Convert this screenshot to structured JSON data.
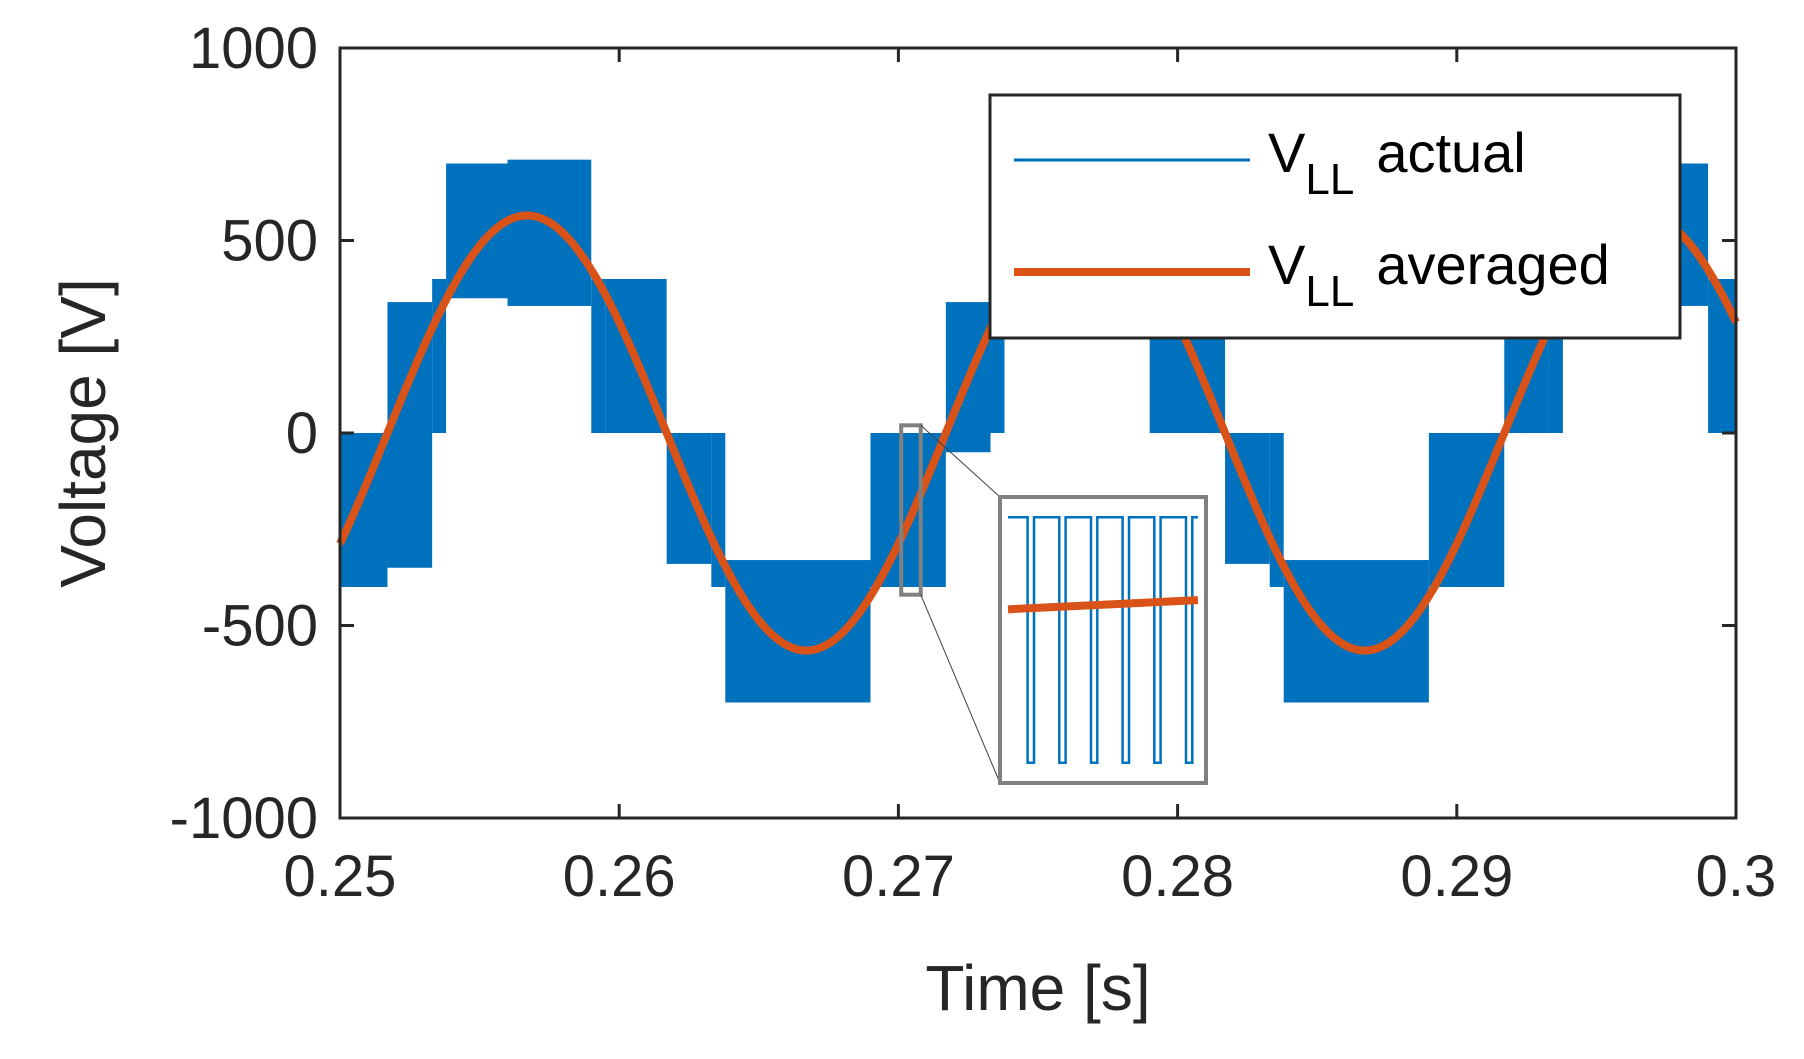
{
  "chart_data": {
    "type": "line",
    "xlabel": "Time [s]",
    "ylabel": "Voltage [V]",
    "xlim": [
      0.25,
      0.3
    ],
    "ylim": [
      -1000,
      1000
    ],
    "x_ticks": [
      0.25,
      0.26,
      0.27,
      0.28,
      0.29,
      0.3
    ],
    "x_tick_labels": [
      "0.25",
      "0.26",
      "0.27",
      "0.28",
      "0.29",
      "0.3"
    ],
    "y_ticks": [
      1000,
      500,
      0,
      -500,
      -1000
    ],
    "y_tick_labels": [
      "1000",
      "500",
      "0",
      "-500",
      "-1000"
    ],
    "grid": false,
    "legend_position": "top-right",
    "series": [
      {
        "name": "V_LL actual",
        "legend_main": "V",
        "legend_sub": "LL",
        "legend_rest": "actual",
        "color": "#0072BD",
        "kind": "pwm-envelope",
        "description_fundamental_hz": 50,
        "envelope_segments": [
          {
            "x_start": 0.25,
            "x_end": 0.2517,
            "upper": 0,
            "lower": -400
          },
          {
            "x_start": 0.2517,
            "x_end": 0.2533,
            "upper": 340,
            "lower": -350
          },
          {
            "x_start": 0.2533,
            "x_end": 0.2538,
            "upper": 400,
            "lower": 0
          },
          {
            "x_start": 0.2538,
            "x_end": 0.256,
            "upper": 700,
            "lower": 350
          },
          {
            "x_start": 0.256,
            "x_end": 0.259,
            "upper": 710,
            "lower": 330
          },
          {
            "x_start": 0.259,
            "x_end": 0.2595,
            "upper": 400,
            "lower": 0
          },
          {
            "x_start": 0.2595,
            "x_end": 0.2617,
            "upper": 400,
            "lower": 0
          },
          {
            "x_start": 0.2617,
            "x_end": 0.2633,
            "upper": 0,
            "lower": -340
          },
          {
            "x_start": 0.2633,
            "x_end": 0.2638,
            "upper": 0,
            "lower": -400
          },
          {
            "x_start": 0.2638,
            "x_end": 0.269,
            "upper": -330,
            "lower": -700
          },
          {
            "x_start": 0.269,
            "x_end": 0.2717,
            "upper": 0,
            "lower": -400
          },
          {
            "x_start": 0.2717,
            "x_end": 0.2733,
            "upper": 340,
            "lower": -50
          },
          {
            "x_start": 0.2733,
            "x_end": 0.2738,
            "upper": 400,
            "lower": 0
          },
          {
            "x_start": 0.2738,
            "x_end": 0.279,
            "upper": 700,
            "lower": 330
          },
          {
            "x_start": 0.279,
            "x_end": 0.2817,
            "upper": 400,
            "lower": 0
          },
          {
            "x_start": 0.2817,
            "x_end": 0.2833,
            "upper": 0,
            "lower": -340
          },
          {
            "x_start": 0.2833,
            "x_end": 0.2838,
            "upper": 0,
            "lower": -400
          },
          {
            "x_start": 0.2838,
            "x_end": 0.289,
            "upper": -330,
            "lower": -700
          },
          {
            "x_start": 0.289,
            "x_end": 0.2917,
            "upper": 0,
            "lower": -400
          },
          {
            "x_start": 0.2917,
            "x_end": 0.2933,
            "upper": 340,
            "lower": 0
          },
          {
            "x_start": 0.2933,
            "x_end": 0.2938,
            "upper": 400,
            "lower": 0
          },
          {
            "x_start": 0.2938,
            "x_end": 0.299,
            "upper": 700,
            "lower": 330
          },
          {
            "x_start": 0.299,
            "x_end": 0.3,
            "upper": 400,
            "lower": 0
          }
        ]
      },
      {
        "name": "V_LL averaged",
        "legend_main": "V",
        "legend_sub": "LL",
        "legend_rest": "averaged",
        "color": "#D95319",
        "kind": "sinusoid",
        "amplitude": 565,
        "frequency_hz": 50,
        "zero_crossing_rising": 0.2517
      }
    ],
    "inset": {
      "source_x_range": [
        0.2701,
        0.2708
      ],
      "source_y_range": [
        -420,
        20
      ],
      "pulse_count": 6,
      "pulse_high": 0,
      "pulse_low": -400,
      "averaged_start": -150,
      "averaged_end": -135
    }
  }
}
